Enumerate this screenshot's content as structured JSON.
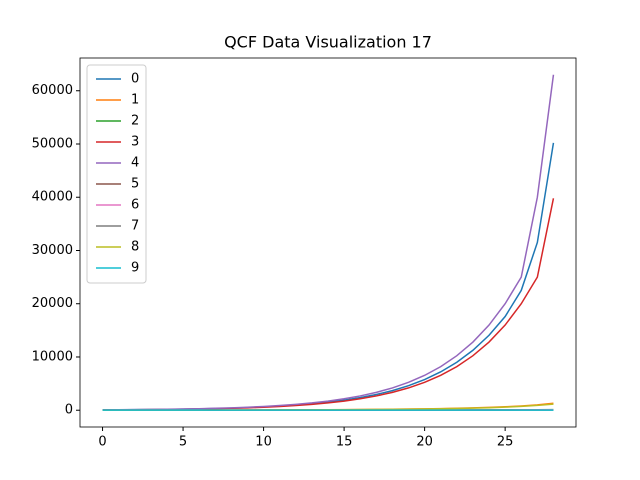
{
  "chart_data": {
    "type": "line",
    "title": "QCF Data Visualization 17",
    "x": [
      0,
      1,
      2,
      3,
      4,
      5,
      6,
      7,
      8,
      9,
      10,
      11,
      12,
      13,
      14,
      15,
      16,
      17,
      18,
      19,
      20,
      21,
      22,
      23,
      24,
      25,
      26,
      27,
      28
    ],
    "xlim": [
      -1.4,
      29.4
    ],
    "xticks": [
      0,
      5,
      10,
      15,
      20,
      25
    ],
    "ylim": [
      -3150,
      66150
    ],
    "yticks": [
      0,
      10000,
      20000,
      30000,
      40000,
      50000,
      60000
    ],
    "legend": "upper left",
    "series": [
      {
        "name": "0",
        "color": "#1f77b4",
        "values": [
          66,
          83,
          104,
          129,
          162,
          202,
          253,
          317,
          396,
          495,
          619,
          774,
          968,
          1209,
          1512,
          1889,
          2362,
          2952,
          3687,
          4611,
          5764,
          7207,
          9011,
          11264,
          14080,
          17600,
          22500,
          31500,
          50200
        ]
      },
      {
        "name": "1",
        "color": "#ff7f0e",
        "values": [
          10,
          12,
          15,
          18,
          22,
          26,
          31,
          37,
          44,
          52,
          60,
          68,
          76,
          85,
          95,
          110,
          130,
          155,
          185,
          220,
          260,
          310,
          370,
          440,
          530,
          650,
          800,
          1000,
          1300
        ]
      },
      {
        "name": "2",
        "color": "#2ca02c",
        "values": [
          0,
          1,
          1,
          2,
          2,
          3,
          3,
          4,
          5,
          6,
          7,
          8,
          9,
          10,
          12,
          14,
          16,
          19,
          22,
          26,
          30,
          35,
          41,
          48,
          56,
          66,
          78,
          92,
          110
        ]
      },
      {
        "name": "3",
        "color": "#d62728",
        "values": [
          60,
          75,
          94,
          118,
          147,
          184,
          230,
          288,
          360,
          450,
          562,
          704,
          880,
          1099,
          1374,
          1718,
          2147,
          2684,
          3352,
          4192,
          5240,
          6552,
          8192,
          10240,
          12800,
          16000,
          20000,
          25000,
          39800
        ]
      },
      {
        "name": "4",
        "color": "#9467bd",
        "values": [
          75,
          94,
          118,
          147,
          184,
          230,
          288,
          360,
          450,
          563,
          703,
          880,
          1100,
          1374,
          1718,
          2147,
          2684,
          3355,
          4190,
          5240,
          6550,
          8190,
          10240,
          12800,
          16000,
          20000,
          25000,
          40000,
          63000
        ]
      },
      {
        "name": "5",
        "color": "#8c564b",
        "values": [
          1,
          1,
          1,
          2,
          2,
          2,
          3,
          3,
          4,
          4,
          5,
          6,
          7,
          8,
          9,
          10,
          12,
          14,
          16,
          19,
          22,
          26,
          30,
          35,
          41,
          48,
          56,
          66,
          78
        ]
      },
      {
        "name": "6",
        "color": "#e377c2",
        "values": [
          2,
          2,
          3,
          3,
          4,
          4,
          5,
          5,
          6,
          7,
          8,
          9,
          10,
          11,
          12,
          14,
          16,
          18,
          20,
          23,
          26,
          30,
          34,
          39,
          45,
          52,
          60,
          70,
          82
        ]
      },
      {
        "name": "7",
        "color": "#7f7f7f",
        "values": [
          5,
          5,
          5,
          6,
          6,
          6,
          7,
          7,
          7,
          8,
          8,
          9,
          9,
          10,
          10,
          11,
          11,
          12,
          13,
          14,
          15,
          16,
          17,
          18,
          19,
          20,
          21,
          22,
          23
        ]
      },
      {
        "name": "8",
        "color": "#bcbd22",
        "values": [
          8,
          10,
          12,
          15,
          18,
          22,
          26,
          31,
          37,
          44,
          51,
          58,
          66,
          75,
          85,
          98,
          115,
          137,
          163,
          195,
          232,
          277,
          331,
          396,
          475,
          580,
          720,
          900,
          1150
        ]
      },
      {
        "name": "9",
        "color": "#17becf",
        "values": [
          20,
          20,
          20,
          20,
          20,
          20,
          20,
          20,
          20,
          20,
          20,
          20,
          20,
          20,
          20,
          20,
          20,
          20,
          20,
          20,
          20,
          20,
          20,
          20,
          20,
          20,
          20,
          20,
          20
        ]
      }
    ]
  }
}
